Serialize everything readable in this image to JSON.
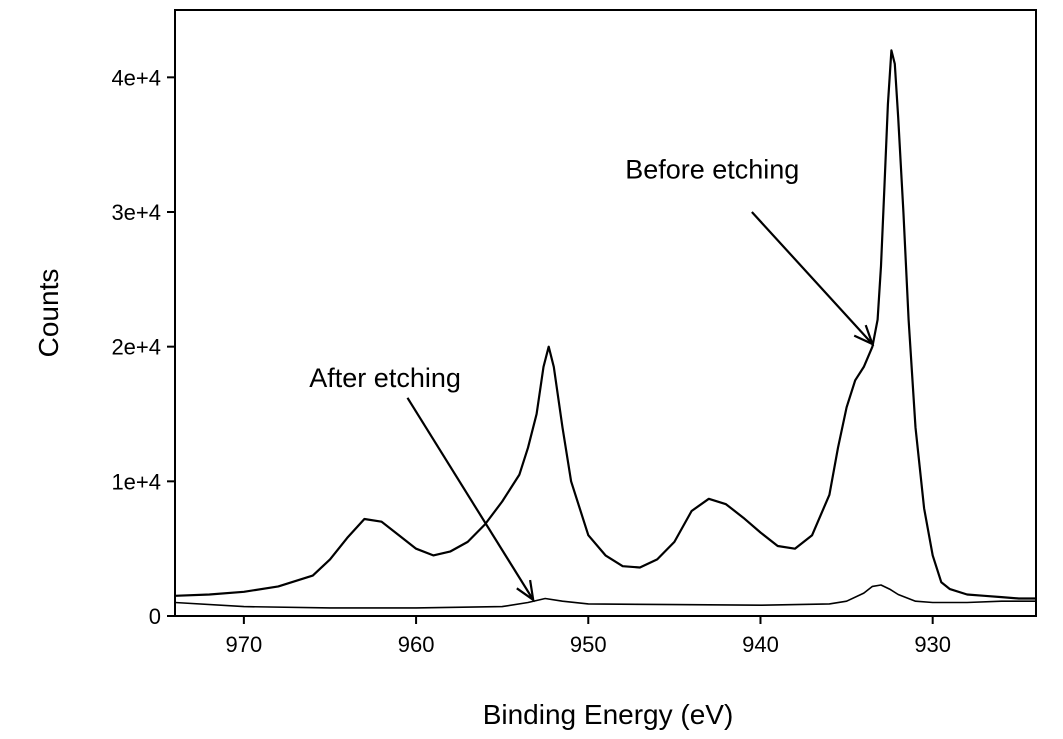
{
  "chart_data": {
    "type": "line",
    "title": "",
    "xlabel": "Binding Energy (eV)",
    "ylabel": "Counts",
    "xlim": [
      974,
      924
    ],
    "ylim": [
      0,
      45000
    ],
    "x_reversed": true,
    "grid": false,
    "legend": "none",
    "x_ticks": [
      970,
      960,
      950,
      940,
      930
    ],
    "y_ticks": [
      {
        "value": 0,
        "label": "0"
      },
      {
        "value": 10000,
        "label": "1e+4"
      },
      {
        "value": 20000,
        "label": "2e+4"
      },
      {
        "value": 30000,
        "label": "3e+4"
      },
      {
        "value": 40000,
        "label": "4e+4"
      }
    ],
    "series": [
      {
        "x": [
          974,
          972,
          970,
          968,
          966,
          965,
          964,
          963,
          962,
          961,
          960,
          959,
          958,
          957,
          956,
          955,
          954,
          953.5,
          953,
          952.6,
          952.3,
          952,
          951.5,
          951,
          950,
          949,
          948,
          947,
          946,
          945,
          944,
          943,
          942,
          941,
          940,
          939,
          938,
          937,
          936,
          935.5,
          935,
          934.5,
          934,
          933.5,
          933.2,
          933,
          932.8,
          932.6,
          932.4,
          932.2,
          932,
          931.7,
          931.4,
          931,
          930.5,
          930,
          929.5,
          929,
          928,
          927,
          926,
          925,
          924
        ],
        "values": [
          1500,
          1600,
          1800,
          2200,
          3000,
          4200,
          5800,
          7200,
          7000,
          6000,
          5000,
          4500,
          4800,
          5500,
          6800,
          8500,
          10500,
          12500,
          15000,
          18500,
          20000,
          18500,
          14000,
          10000,
          6000,
          4500,
          3700,
          3600,
          4200,
          5500,
          7800,
          8700,
          8300,
          7300,
          6200,
          5200,
          5000,
          6000,
          9000,
          12500,
          15500,
          17500,
          18500,
          20000,
          22000,
          26000,
          32000,
          38000,
          42000,
          41000,
          37000,
          30000,
          22000,
          14000,
          8000,
          4500,
          2500,
          2000,
          1600,
          1500,
          1400,
          1300,
          1300
        ]
      },
      {
        "x": [
          974,
          970,
          965,
          960,
          955,
          953.5,
          952.5,
          951.5,
          950,
          945,
          940,
          936,
          935,
          934,
          933.5,
          933,
          932.5,
          932,
          931,
          930,
          929,
          928,
          926,
          924
        ],
        "values": [
          1000,
          700,
          600,
          600,
          700,
          1000,
          1300,
          1100,
          900,
          850,
          800,
          900,
          1100,
          1700,
          2200,
          2300,
          2000,
          1600,
          1100,
          1000,
          1000,
          1000,
          1100,
          1100
        ]
      }
    ],
    "annotations": [
      {
        "text": "Before etching",
        "x": 942.8,
        "y": 32500,
        "arrow_from": [
          940.5,
          30000
        ],
        "arrow_to": [
          933.5,
          20200
        ]
      },
      {
        "text": "After etching",
        "x": 961.8,
        "y": 17000,
        "arrow_from": [
          960.5,
          16200
        ],
        "arrow_to": [
          953.2,
          1200
        ]
      }
    ]
  }
}
